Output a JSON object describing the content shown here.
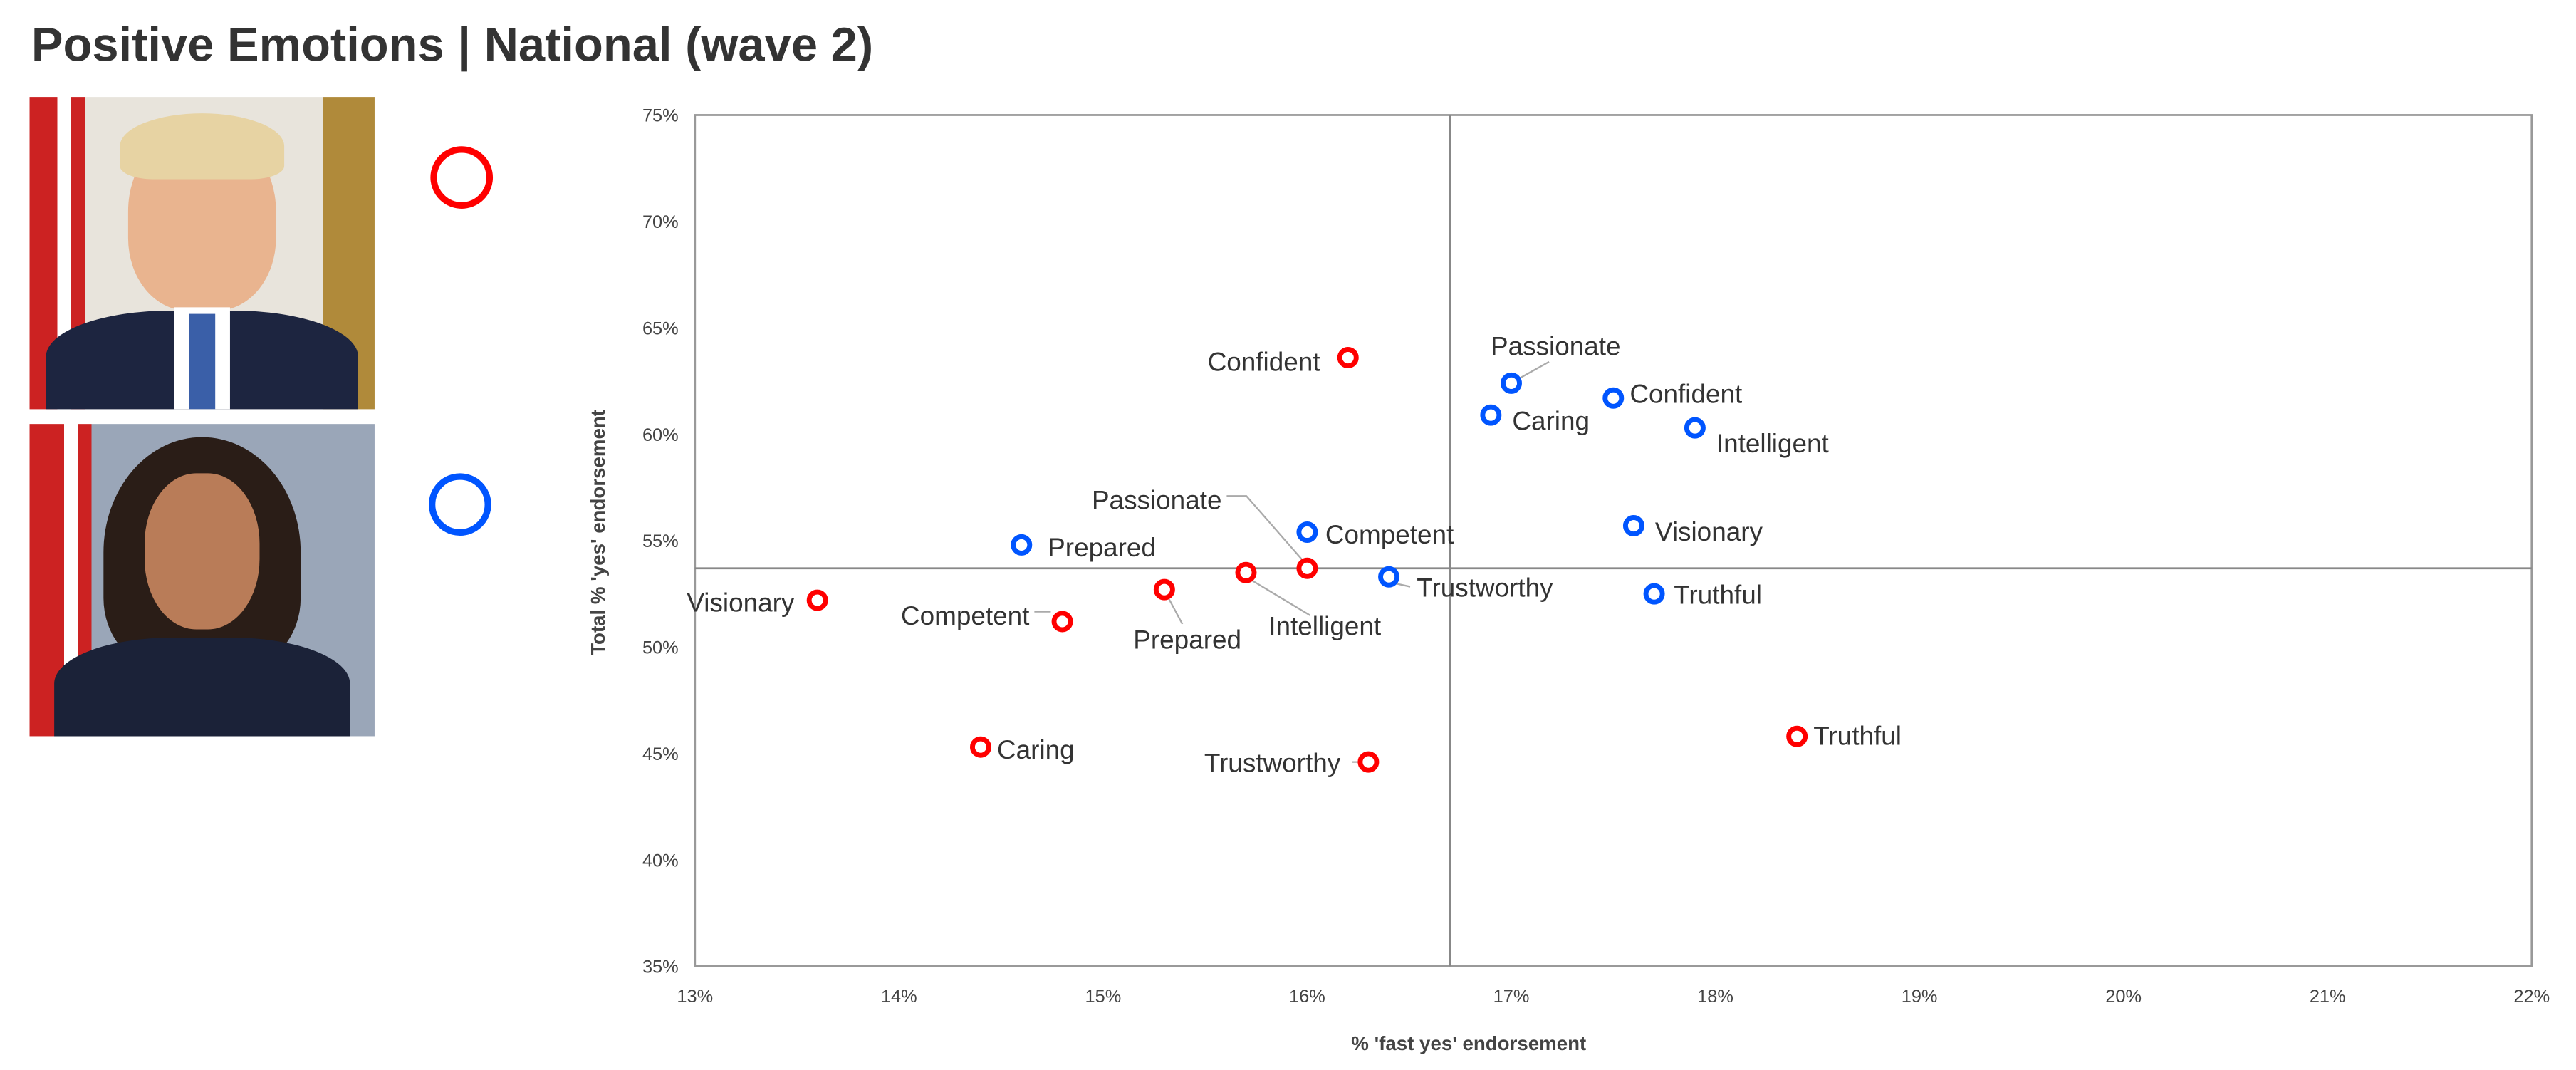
{
  "title": "Positive Emotions | National (wave 2)",
  "colors": {
    "trump": "#ff0000",
    "harris": "#0055ff",
    "axis": "#999999"
  },
  "legend": [
    {
      "marker": "red-ring",
      "image": "portrait-trump"
    },
    {
      "marker": "blue-ring",
      "image": "portrait-harris"
    }
  ],
  "chart_data": {
    "type": "scatter",
    "xlabel": "% 'fast yes' endorsement",
    "ylabel": "Total % 'yes' endorsement",
    "xlim": [
      13,
      22
    ],
    "ylim": [
      35,
      75
    ],
    "x_ticks": [
      "13%",
      "14%",
      "15%",
      "16%",
      "17%",
      "18%",
      "19%",
      "20%",
      "21%",
      "22%"
    ],
    "y_ticks": [
      "35%",
      "40%",
      "45%",
      "50%",
      "55%",
      "60%",
      "65%",
      "70%",
      "75%"
    ],
    "reference_lines": {
      "x": 16.7,
      "y": 53.7
    },
    "grid": false,
    "series": [
      {
        "color": "#ff0000",
        "points": [
          {
            "label": "Confident",
            "x": 16.2,
            "y": 63.6
          },
          {
            "label": "Visionary",
            "x": 13.6,
            "y": 52.2
          },
          {
            "label": "Competent",
            "x": 14.8,
            "y": 51.2
          },
          {
            "label": "Prepared",
            "x": 15.3,
            "y": 52.7
          },
          {
            "label": "Intelligent",
            "x": 15.7,
            "y": 53.5
          },
          {
            "label": "Passionate",
            "x": 16.0,
            "y": 53.7
          },
          {
            "label": "Caring",
            "x": 14.4,
            "y": 45.3
          },
          {
            "label": "Trustworthy",
            "x": 16.3,
            "y": 44.6
          },
          {
            "label": "Truthful",
            "x": 18.4,
            "y": 45.8
          }
        ]
      },
      {
        "color": "#0055ff",
        "points": [
          {
            "label": "Passionate",
            "x": 17.0,
            "y": 62.4
          },
          {
            "label": "Confident",
            "x": 17.5,
            "y": 61.7
          },
          {
            "label": "Caring",
            "x": 16.9,
            "y": 60.9
          },
          {
            "label": "Intelligent",
            "x": 17.9,
            "y": 60.3
          },
          {
            "label": "Visionary",
            "x": 17.6,
            "y": 55.7
          },
          {
            "label": "Competent",
            "x": 16.0,
            "y": 55.4
          },
          {
            "label": "Prepared",
            "x": 14.6,
            "y": 54.8
          },
          {
            "label": "Trustworthy",
            "x": 16.4,
            "y": 53.3
          },
          {
            "label": "Truthful",
            "x": 17.7,
            "y": 52.5
          }
        ]
      }
    ]
  }
}
